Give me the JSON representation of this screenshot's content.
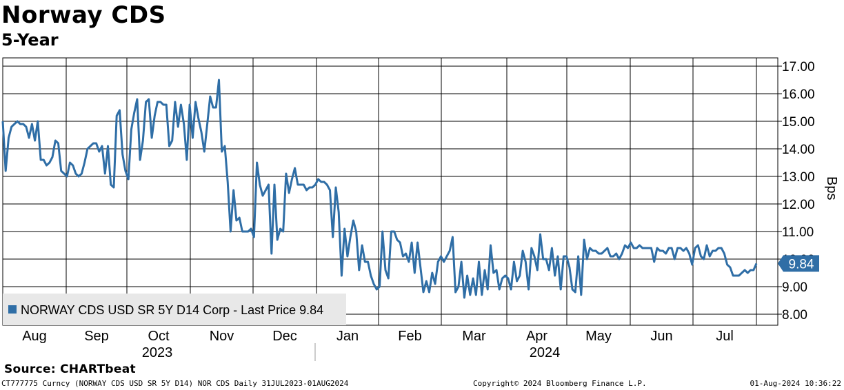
{
  "header": {
    "title": "Norway CDS",
    "subtitle": "5-Year"
  },
  "colors": {
    "line": "#2f6ea6",
    "legend_bg": "#e8e8e8",
    "grid": "#000000"
  },
  "legend": {
    "text": "NORWAY CDS USD SR 5Y D14 Corp - Last Price 9.84",
    "position": "bottom-left"
  },
  "footer": {
    "source": "Source: CHARTbeat",
    "ticker": "CT777775 Curncy (NORWAY CDS USD SR 5Y D14) NOR CDS  Daily 31JUL2023-01AUG2024",
    "copyright": "Copyright© 2024 Bloomberg Finance L.P.",
    "timestamp": "01-Aug-2024 10:36:22"
  },
  "chart_data": {
    "type": "line",
    "title": "Norway CDS",
    "subtitle": "5-Year",
    "ylabel": "Bps",
    "ylim": [
      7.6,
      17.3
    ],
    "yticks": [
      "17.00",
      "16.00",
      "15.00",
      "14.00",
      "13.00",
      "12.00",
      "11.00",
      "10.00",
      "9.00",
      "8.00"
    ],
    "y_axis_side": "right",
    "grid": true,
    "last_price": "9.84",
    "months": [
      "Aug",
      "Sep",
      "Oct",
      "Nov",
      "Dec",
      "Jan",
      "Feb",
      "Mar",
      "Apr",
      "May",
      "Jun",
      "Jul"
    ],
    "years": [
      "2023",
      "2024"
    ],
    "series": [
      {
        "name": "NORWAY CDS USD SR 5Y D14 Corp",
        "start_date": "2023-07-31",
        "end_date": "2024-08-01",
        "values": [
          15.0,
          13.2,
          14.4,
          14.8,
          14.9,
          15.0,
          14.9,
          14.9,
          14.8,
          14.4,
          14.9,
          14.3,
          15.0,
          13.6,
          13.6,
          13.4,
          13.5,
          13.7,
          14.3,
          14.2,
          13.2,
          13.1,
          13.0,
          13.5,
          13.4,
          13.1,
          13.0,
          13.1,
          13.5,
          14.0,
          14.1,
          14.2,
          14.2,
          13.9,
          14.1,
          13.1,
          14.1,
          12.7,
          12.6,
          15.2,
          15.4,
          13.8,
          13.2,
          12.9,
          14.7,
          15.3,
          15.8,
          13.6,
          14.3,
          15.7,
          15.8,
          14.4,
          15.2,
          15.7,
          15.7,
          15.6,
          15.6,
          14.1,
          14.3,
          15.7,
          14.8,
          15.6,
          14.9,
          13.6,
          15.6,
          14.4,
          15.7,
          15.1,
          14.6,
          13.9,
          14.9,
          15.9,
          15.5,
          15.5,
          16.5,
          13.9,
          14.1,
          12.8,
          11.0,
          12.5,
          11.4,
          11.5,
          11.0,
          11.0,
          11.0,
          11.1,
          10.8,
          13.5,
          12.7,
          12.3,
          12.5,
          12.7,
          10.2,
          12.7,
          10.7,
          11.1,
          11.0,
          13.1,
          12.4,
          12.9,
          13.3,
          12.7,
          12.7,
          12.7,
          12.5,
          12.6,
          12.6,
          12.7,
          12.9,
          12.8,
          12.8,
          12.7,
          12.5,
          10.8,
          12.6,
          11.7,
          9.4,
          11.1,
          10.1,
          10.8,
          11.4,
          11.0,
          9.6,
          10.5,
          9.9,
          9.9,
          9.4,
          9.1,
          8.9,
          9.0,
          11.0,
          9.6,
          9.3,
          11.0,
          11.0,
          10.7,
          10.6,
          10.1,
          10.2,
          9.9,
          10.6,
          9.5,
          10.6,
          9.7,
          8.8,
          9.2,
          8.8,
          9.5,
          9.1,
          9.9,
          10.1,
          9.9,
          10.1,
          10.3,
          10.8,
          8.8,
          9.0,
          9.9,
          8.6,
          9.4,
          8.7,
          9.3,
          8.7,
          9.9,
          8.7,
          9.6,
          8.9,
          10.5,
          9.5,
          9.6,
          8.9,
          9.3,
          9.4,
          9.3,
          8.9,
          9.9,
          9.2,
          9.4,
          10.3,
          9.9,
          8.9,
          10.4,
          10.1,
          9.6,
          10.9,
          10.0,
          10.0,
          9.6,
          10.4,
          9.4,
          10.1,
          8.9,
          10.1,
          10.1,
          9.7,
          8.9,
          8.8,
          10.1,
          8.7,
          10.7,
          10.0,
          10.4,
          10.3,
          10.3,
          10.2,
          10.2,
          10.3,
          10.4,
          10.1,
          10.1,
          10.2,
          10.0,
          10.2,
          10.5,
          10.4,
          10.6,
          10.4,
          10.4,
          10.5,
          10.4,
          10.4,
          10.4,
          10.4,
          9.9,
          10.4,
          10.3,
          10.3,
          10.2,
          10.4,
          10.4,
          10.0,
          10.4,
          10.4,
          10.3,
          10.4,
          10.2,
          9.8,
          10.4,
          10.5,
          10.1,
          10.0,
          10.5,
          10.1,
          10.3,
          10.3,
          10.4,
          10.4,
          10.2,
          9.8,
          9.7,
          9.4,
          9.4,
          9.4,
          9.5,
          9.6,
          9.5,
          9.6,
          9.6,
          9.84
        ]
      }
    ]
  }
}
